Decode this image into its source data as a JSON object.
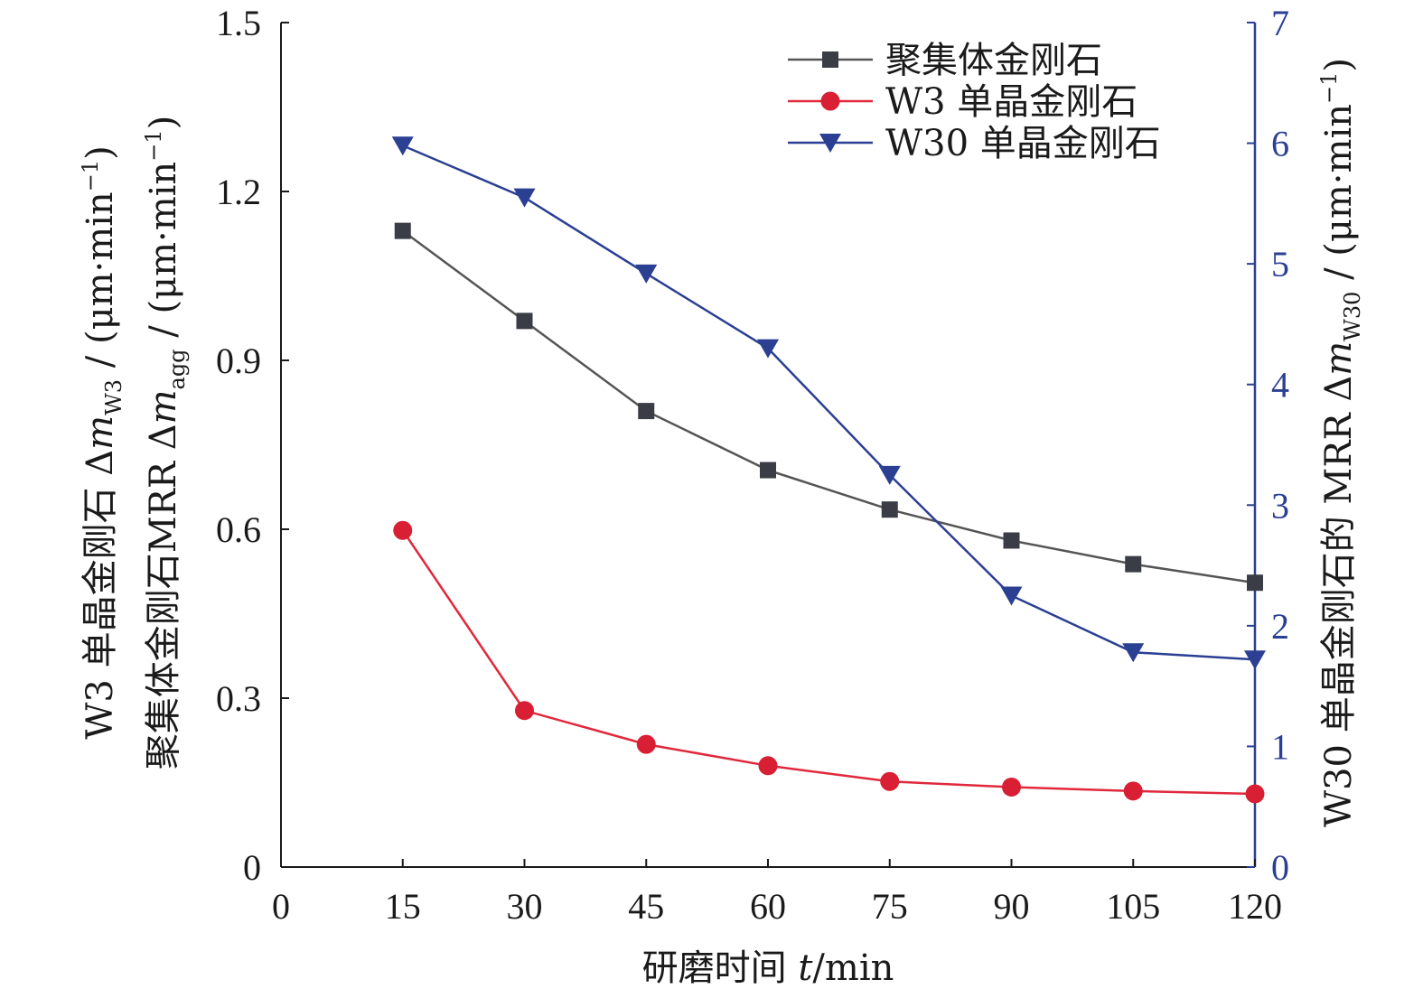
{
  "chart_data": {
    "type": "line",
    "x": [
      15,
      30,
      45,
      60,
      75,
      90,
      105,
      120
    ],
    "x_ticks": [
      "0",
      "15",
      "30",
      "45",
      "60",
      "75",
      "90",
      "105",
      "120"
    ],
    "xlim": [
      0,
      120
    ],
    "xlabel": {
      "main": "研磨时间 ",
      "italic": "t",
      "unit": "/min"
    },
    "y_left": {
      "ylim": [
        0,
        1.5
      ],
      "ticks": [
        "0",
        "0.3",
        "0.6",
        "0.9",
        "1.2",
        "1.5"
      ],
      "label_line1": {
        "pre": "W3 单晶金刚石 Δ",
        "italic": "m",
        "sub": "W3",
        "post": " / (μm·min",
        "sup": "−1",
        "end": ")"
      },
      "label_line2": {
        "pre": "聚集体金刚石MRR Δ",
        "italic": "m",
        "sub": "agg",
        "post": " / (μm·min",
        "sup": "−1",
        "end": ")"
      }
    },
    "y_right": {
      "ylim": [
        0,
        7
      ],
      "ticks": [
        "0",
        "1",
        "2",
        "3",
        "4",
        "5",
        "6",
        "7"
      ],
      "label": {
        "pre": "W30 单晶金刚石的 MRR Δ",
        "italic": "m",
        "sub": "W30",
        "post": " / (μm·min",
        "sup": "−1",
        "end": ")"
      },
      "color": "#2b3f93"
    },
    "series": [
      {
        "name": "聚集体金刚石",
        "axis": "left",
        "marker": "square",
        "color": "#555555",
        "marker_color": "#3a3d45",
        "values": [
          1.13,
          0.97,
          0.81,
          0.705,
          0.635,
          0.58,
          0.538,
          0.505
        ]
      },
      {
        "name": "W3 单晶金刚石",
        "axis": "left",
        "marker": "circle",
        "color": "#e0283c",
        "marker_color": "#d81f33",
        "values": [
          0.598,
          0.278,
          0.218,
          0.18,
          0.152,
          0.142,
          0.135,
          0.13
        ]
      },
      {
        "name": "W30 单晶金刚石",
        "axis": "right",
        "marker": "triangle-down",
        "color": "#2b3f93",
        "marker_color": "#2b3f93",
        "values": [
          5.98,
          5.55,
          4.92,
          4.3,
          3.25,
          2.25,
          1.78,
          1.72
        ]
      }
    ],
    "legend_position": "top-right"
  }
}
